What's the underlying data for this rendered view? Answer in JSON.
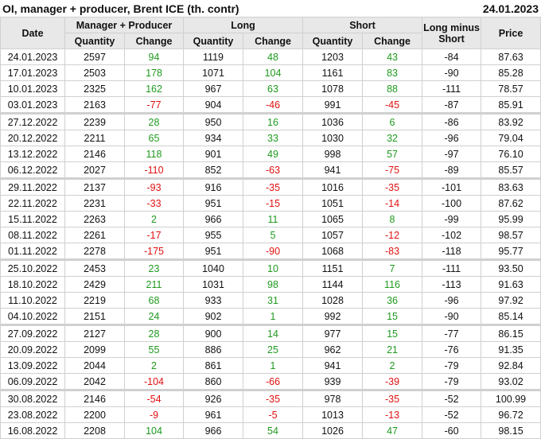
{
  "title": "OI, manager + producer, Brent ICE (th. contr)",
  "date": "24.01.2023",
  "colors": {
    "positive": "#1f9a1f",
    "negative": "#e01010",
    "header_bg": "#e8e8e8"
  },
  "headers": {
    "date": "Date",
    "mp": "Manager + Producer",
    "long": "Long",
    "short": "Short",
    "lms": "Long minus Short",
    "price": "Price",
    "quantity": "Quantity",
    "change": "Change"
  },
  "rows": [
    [
      "24.01.2023",
      "2597",
      "94",
      "1119",
      "48",
      "1203",
      "43",
      "-84",
      "87.63"
    ],
    [
      "17.01.2023",
      "2503",
      "178",
      "1071",
      "104",
      "1161",
      "83",
      "-90",
      "85.28"
    ],
    [
      "10.01.2023",
      "2325",
      "162",
      "967",
      "63",
      "1078",
      "88",
      "-111",
      "78.57"
    ],
    [
      "03.01.2023",
      "2163",
      "-77",
      "904",
      "-46",
      "991",
      "-45",
      "-87",
      "85.91"
    ],
    [
      "27.12.2022",
      "2239",
      "28",
      "950",
      "16",
      "1036",
      "6",
      "-86",
      "83.92"
    ],
    [
      "20.12.2022",
      "2211",
      "65",
      "934",
      "33",
      "1030",
      "32",
      "-96",
      "79.04"
    ],
    [
      "13.12.2022",
      "2146",
      "118",
      "901",
      "49",
      "998",
      "57",
      "-97",
      "76.10"
    ],
    [
      "06.12.2022",
      "2027",
      "-110",
      "852",
      "-63",
      "941",
      "-75",
      "-89",
      "85.57"
    ],
    [
      "29.11.2022",
      "2137",
      "-93",
      "916",
      "-35",
      "1016",
      "-35",
      "-101",
      "83.63"
    ],
    [
      "22.11.2022",
      "2231",
      "-33",
      "951",
      "-15",
      "1051",
      "-14",
      "-100",
      "87.62"
    ],
    [
      "15.11.2022",
      "2263",
      "2",
      "966",
      "11",
      "1065",
      "8",
      "-99",
      "95.99"
    ],
    [
      "08.11.2022",
      "2261",
      "-17",
      "955",
      "5",
      "1057",
      "-12",
      "-102",
      "98.57"
    ],
    [
      "01.11.2022",
      "2278",
      "-175",
      "951",
      "-90",
      "1068",
      "-83",
      "-118",
      "95.77"
    ],
    [
      "25.10.2022",
      "2453",
      "23",
      "1040",
      "10",
      "1151",
      "7",
      "-111",
      "93.50"
    ],
    [
      "18.10.2022",
      "2429",
      "211",
      "1031",
      "98",
      "1144",
      "116",
      "-113",
      "91.63"
    ],
    [
      "11.10.2022",
      "2219",
      "68",
      "933",
      "31",
      "1028",
      "36",
      "-96",
      "97.92"
    ],
    [
      "04.10.2022",
      "2151",
      "24",
      "902",
      "1",
      "992",
      "15",
      "-90",
      "85.14"
    ],
    [
      "27.09.2022",
      "2127",
      "28",
      "900",
      "14",
      "977",
      "15",
      "-77",
      "86.15"
    ],
    [
      "20.09.2022",
      "2099",
      "55",
      "886",
      "25",
      "962",
      "21",
      "-76",
      "91.35"
    ],
    [
      "13.09.2022",
      "2044",
      "2",
      "861",
      "1",
      "941",
      "2",
      "-79",
      "92.84"
    ],
    [
      "06.09.2022",
      "2042",
      "-104",
      "860",
      "-66",
      "939",
      "-39",
      "-79",
      "93.02"
    ],
    [
      "30.08.2022",
      "2146",
      "-54",
      "926",
      "-35",
      "978",
      "-35",
      "-52",
      "100.99"
    ],
    [
      "23.08.2022",
      "2200",
      "-9",
      "961",
      "-5",
      "1013",
      "-13",
      "-52",
      "96.72"
    ],
    [
      "16.08.2022",
      "2208",
      "104",
      "966",
      "54",
      "1026",
      "47",
      "-60",
      "98.15"
    ]
  ]
}
